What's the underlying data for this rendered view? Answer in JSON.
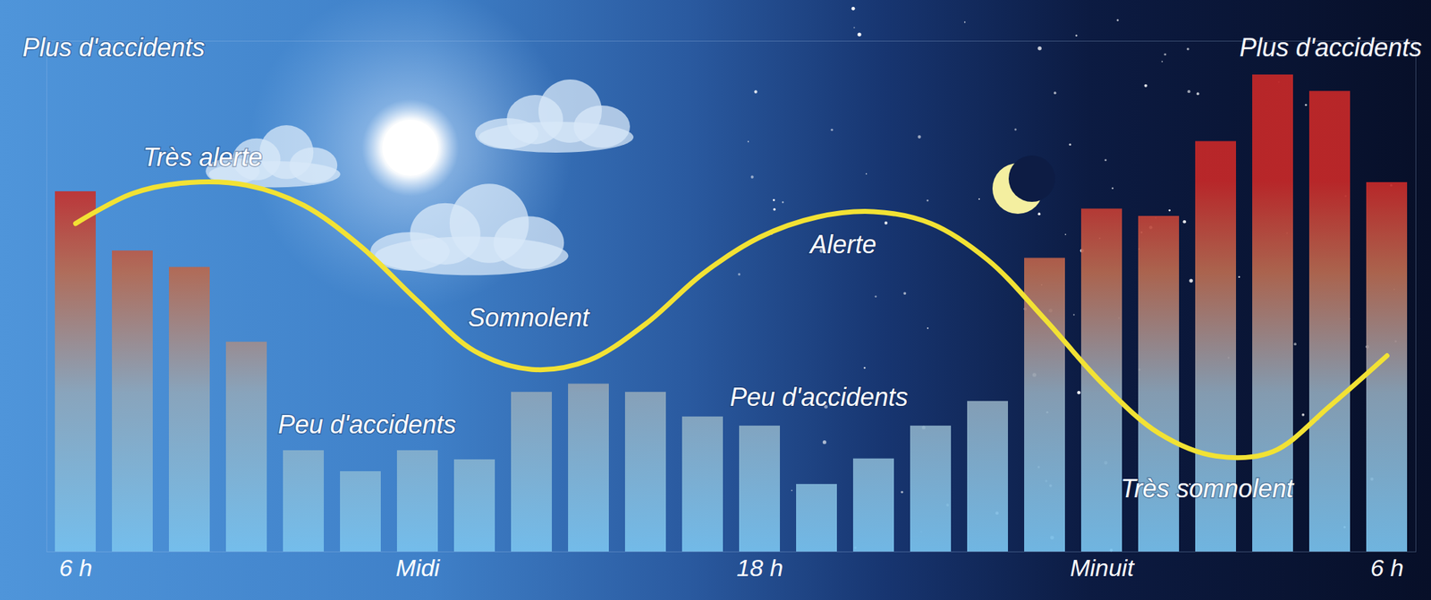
{
  "chart_data": {
    "type": "bar",
    "categories": [
      "6 h",
      null,
      null,
      null,
      null,
      null,
      "Midi",
      null,
      null,
      null,
      null,
      null,
      "18 h",
      null,
      null,
      null,
      null,
      null,
      "Minuit",
      null,
      null,
      null,
      null,
      "6 h"
    ],
    "series": [
      {
        "type": "bar",
        "color": "#c62828",
        "values": [
          395,
          330,
          312,
          230,
          111,
          88,
          111,
          101,
          175,
          184,
          175,
          148,
          138,
          74,
          102,
          138,
          165,
          322,
          376,
          368,
          450,
          523,
          505,
          405
        ]
      },
      {
        "type": "line",
        "color": "#f2e234",
        "values": [
          360,
          393,
          405,
          402,
          380,
          335,
          275,
          220,
          200,
          210,
          250,
          305,
          345,
          367,
          373,
          360,
          320,
          255,
          185,
          130,
          105,
          110,
          160,
          215
        ]
      }
    ],
    "ylim": [
      0,
      560
    ],
    "tick_labels": "x",
    "annotations": [
      "Plus d'accidents",
      "Très alerte",
      "Peu d'accidents",
      "Somnolent",
      "Peu d'accidents",
      "Alerte",
      "Plus d'accidents",
      "Très somnolent"
    ]
  }
}
